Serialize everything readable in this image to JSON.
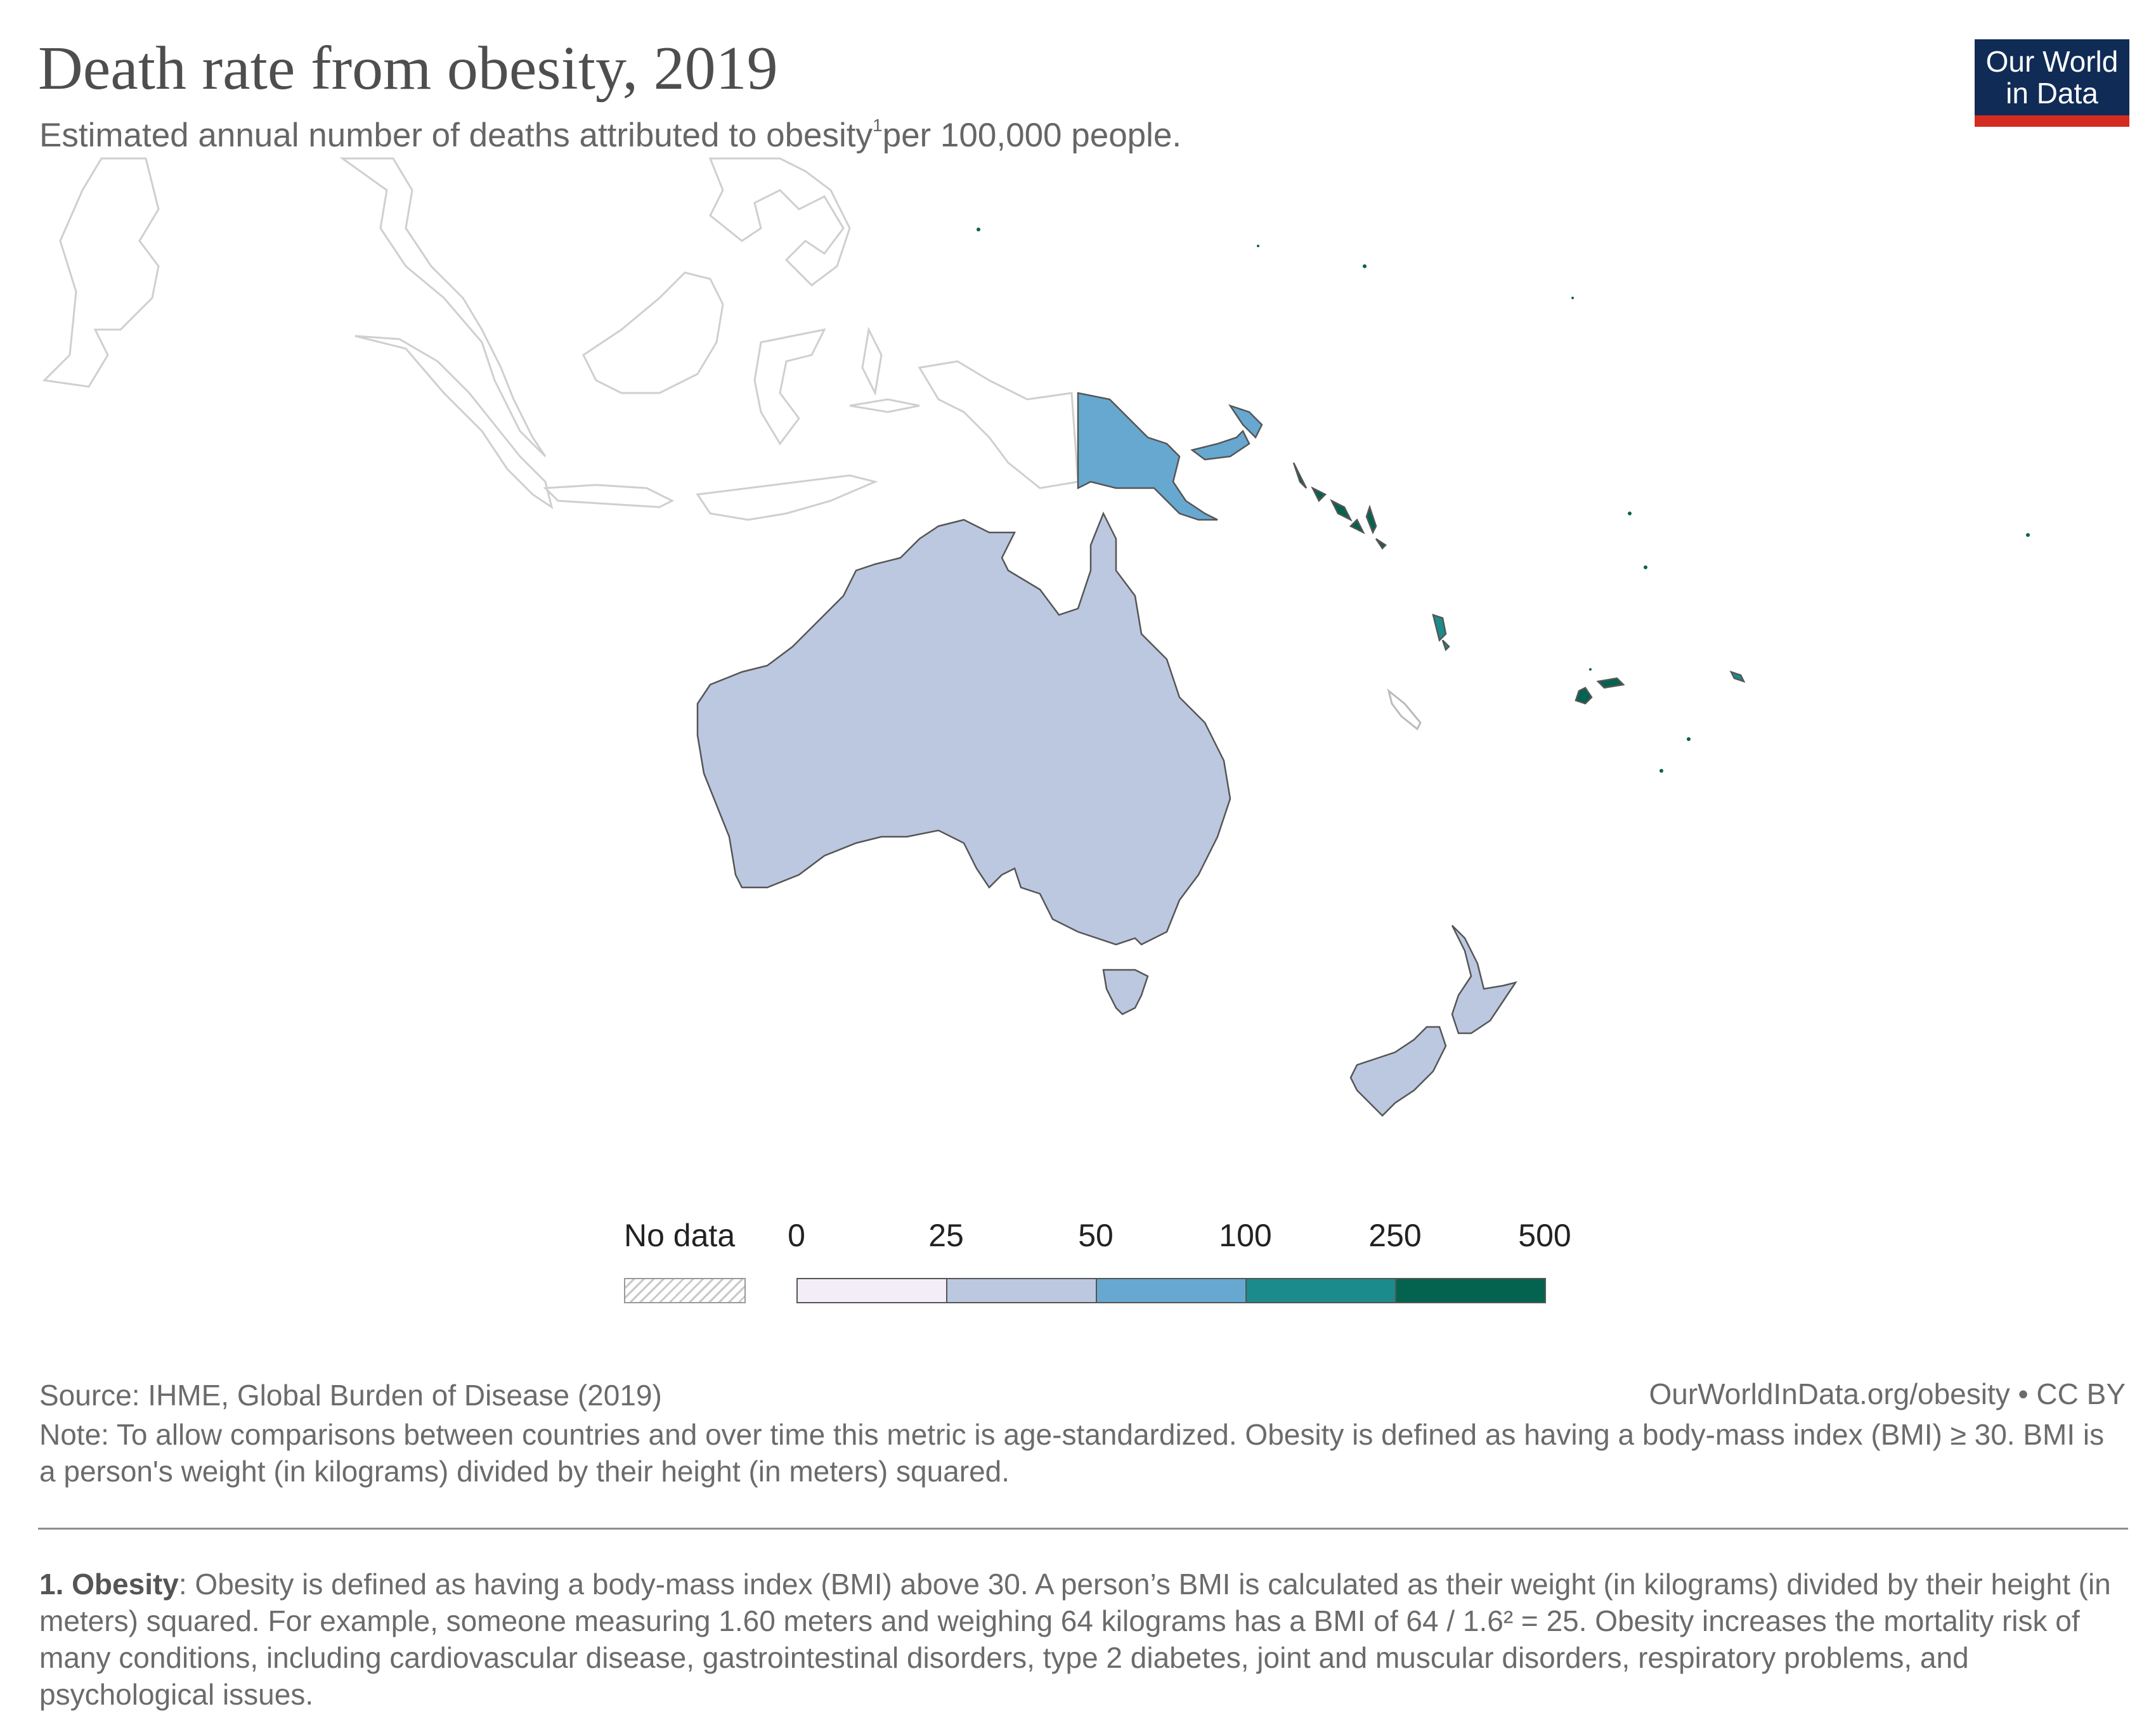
{
  "header": {
    "title": "Death rate from obesity, 2019",
    "subtitle_main": "Estimated annual number of deaths attributed to obesity",
    "subtitle_ref": "1",
    "subtitle_tail": "per 100,000 people.",
    "logo_line1": "Our World",
    "logo_line2": "in Data"
  },
  "legend": {
    "no_data_label": "No data",
    "no_data_color": "#ffffff",
    "ticks": [
      "0",
      "25",
      "50",
      "100",
      "250",
      "500"
    ],
    "bins": [
      {
        "from": 0,
        "to": 25,
        "color": "#f3edf7"
      },
      {
        "from": 25,
        "to": 50,
        "color": "#bcc8e0"
      },
      {
        "from": 50,
        "to": 100,
        "color": "#67a8d0"
      },
      {
        "from": 100,
        "to": 250,
        "color": "#1b8b8c"
      },
      {
        "from": 250,
        "to": 500,
        "color": "#04634f"
      }
    ]
  },
  "map_colors": {
    "australia": "#bcc8e0",
    "new_zealand": "#bcc8e0",
    "papua_new_guinea": "#67a8d0",
    "vanuatu": "#1b8b8c",
    "solomon_islands": "#04634f",
    "fiji": "#04634f",
    "no_data_region_fill": "#ffffff",
    "no_data_outline": "#cfcfcf",
    "border": "#555555"
  },
  "footer": {
    "source": "Source: IHME, Global Burden of Disease (2019)",
    "url": "OurWorldInData.org/obesity • CC BY",
    "note": "Note: To allow comparisons between countries and over time this metric is age-standardized. Obesity is defined as having a body-mass index (BMI) ≥ 30. BMI is a person's weight (in kilograms) divided by their height (in meters) squared.",
    "footnote_label": "1. Obesity",
    "footnote_text": ": Obesity is defined as having a body-mass index (BMI) above 30. A person’s BMI is calculated as their weight (in kilograms) divided by their height (in meters) squared. For example, someone measuring 1.60 meters and weighing 64 kilograms has a BMI of 64 / 1.6² = 25. Obesity increases the mortality risk of many conditions, including cardiovascular disease, gastrointestinal disorders, type 2 diabetes, joint and muscular disorders, respiratory problems, and psychological issues."
  }
}
